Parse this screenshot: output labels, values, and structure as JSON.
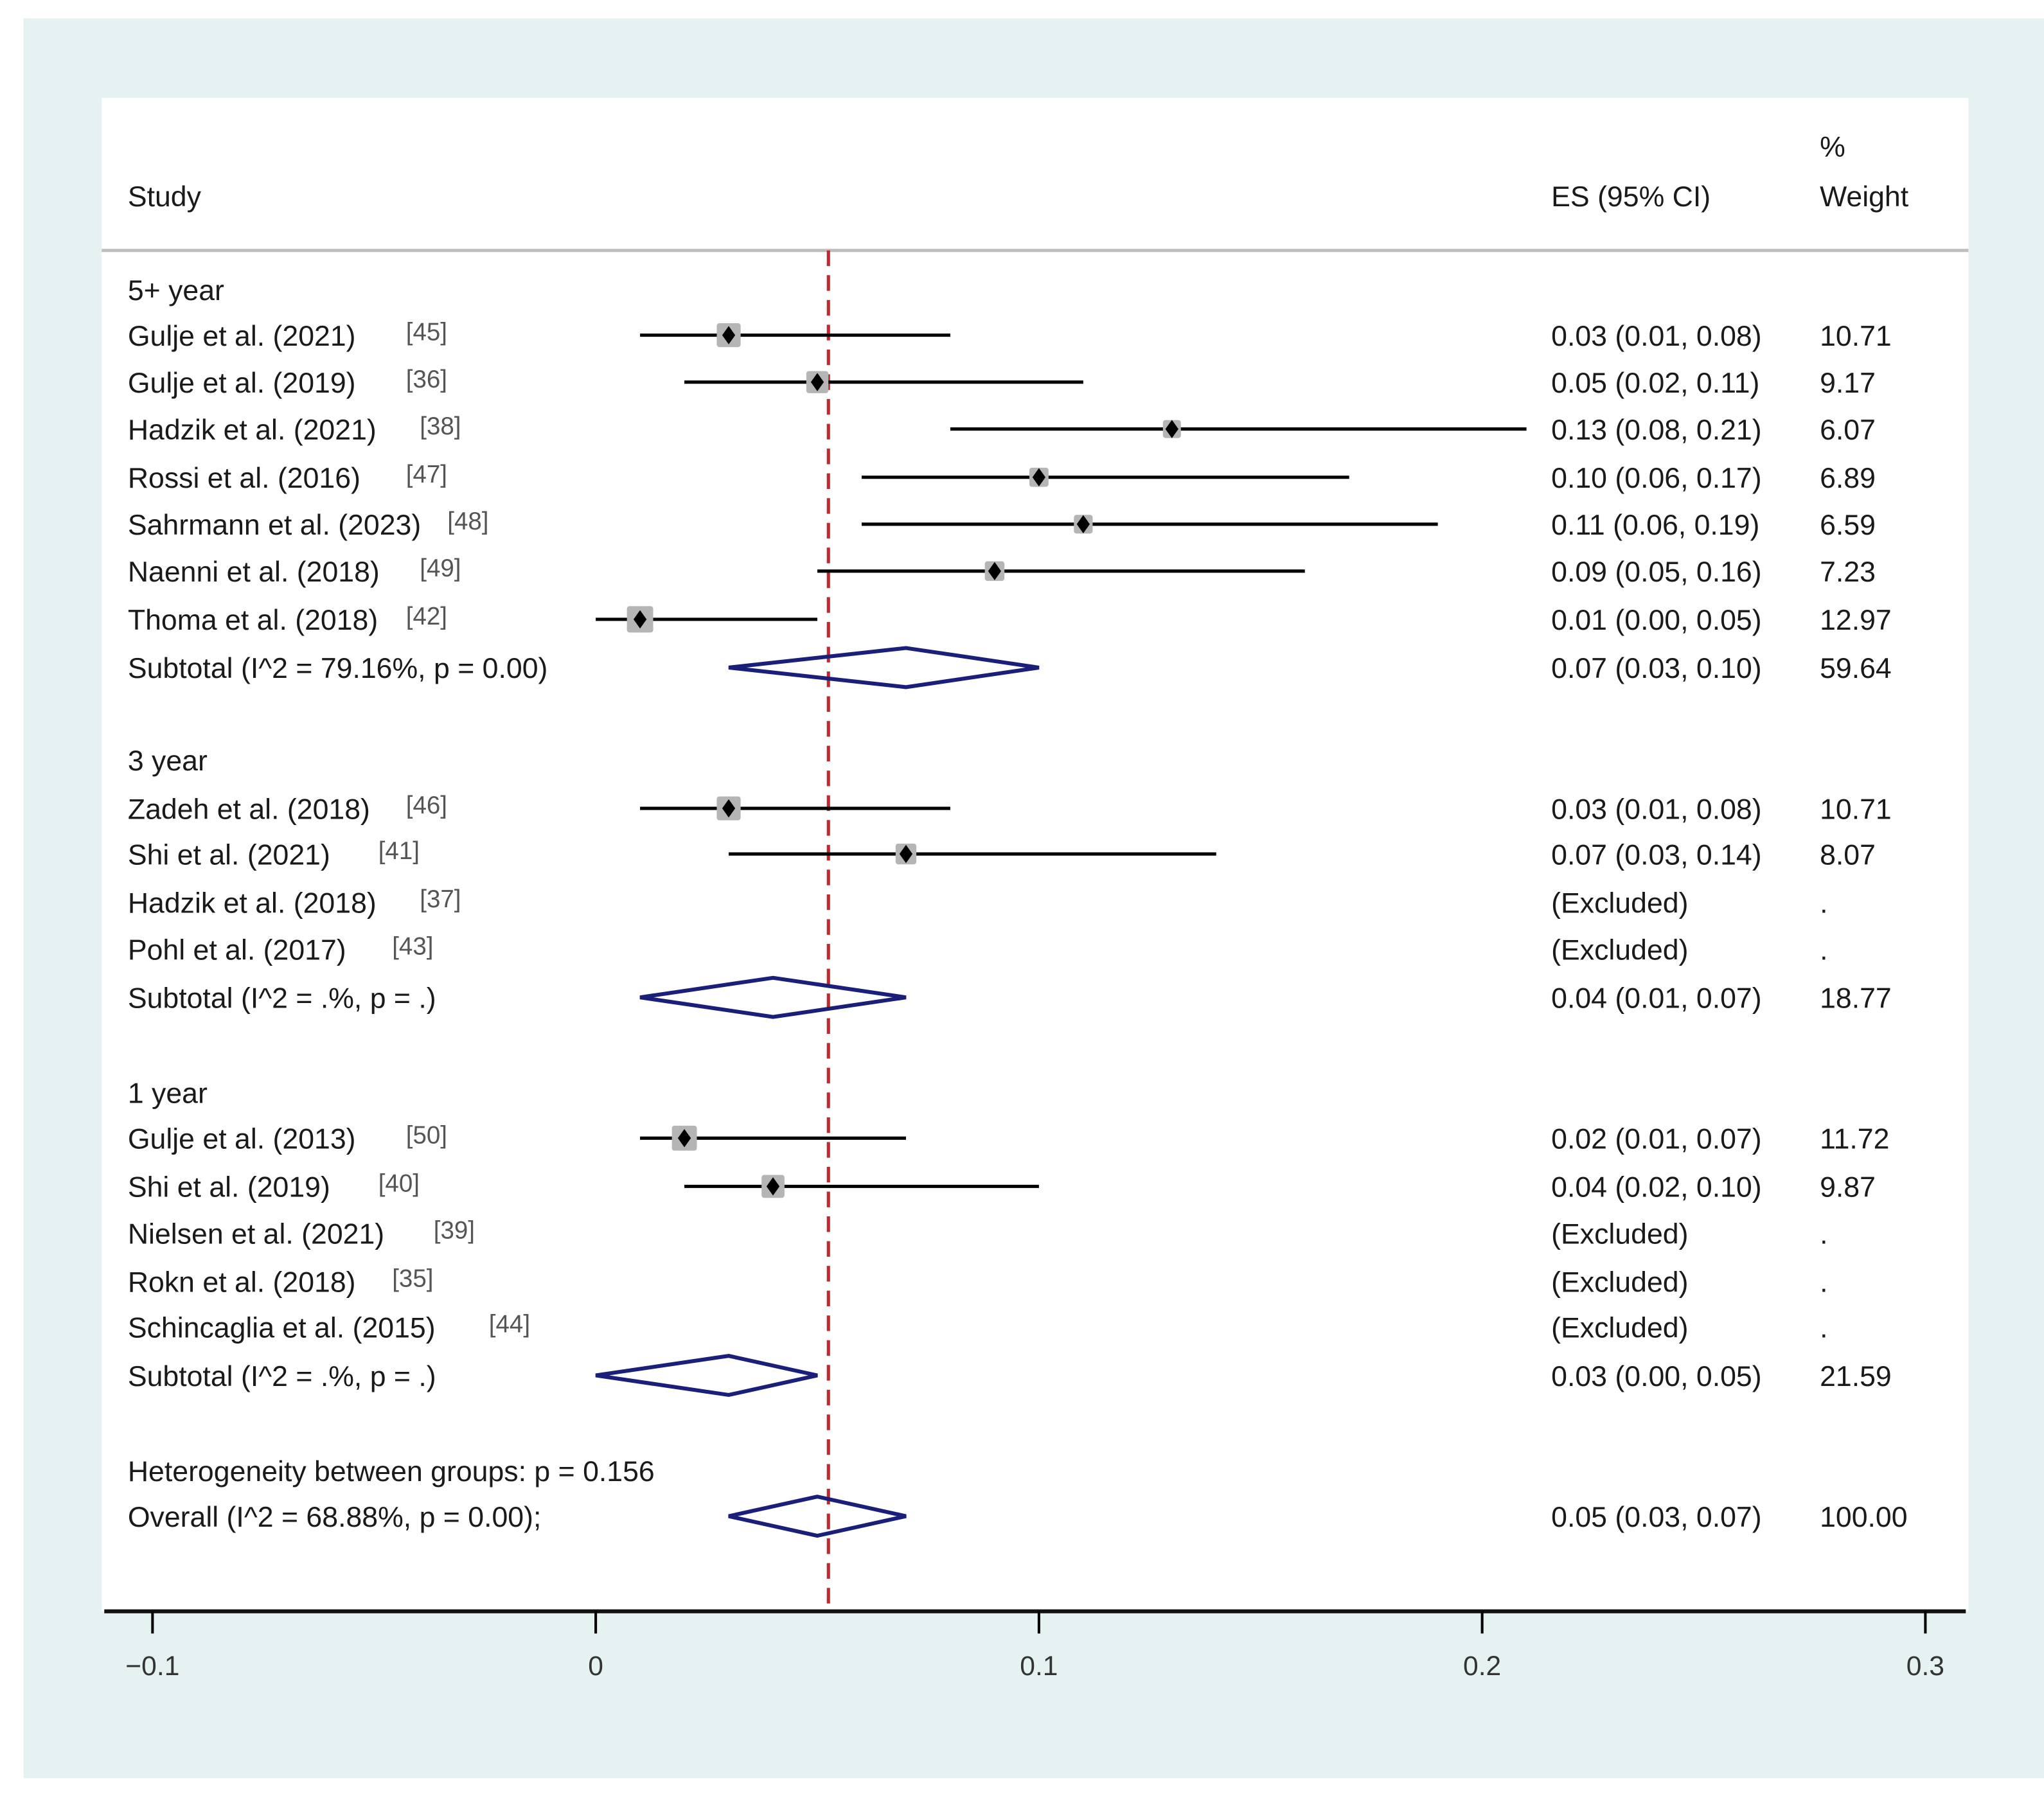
{
  "chart_data": {
    "type": "forest",
    "header": {
      "study": "Study",
      "es": "ES (95% CI)",
      "weight_top": "%",
      "weight": "Weight"
    },
    "xlim": [
      -0.1,
      0.3
    ],
    "xticks": [
      -0.1,
      0,
      0.1,
      0.2,
      0.3
    ],
    "xtick_labels": [
      "−0.1",
      "0",
      "0.1",
      "0.2",
      "0.3"
    ],
    "reference_line": 0.0525,
    "groups": [
      {
        "name": "5+ year",
        "studies": [
          {
            "label": "Gulje et al. (2021)",
            "ref": "[45]",
            "es": 0.03,
            "lo": 0.01,
            "hi": 0.08,
            "es_text": "0.03 (0.01, 0.08)",
            "weight": "10.71"
          },
          {
            "label": "Gulje et al. (2019)",
            "ref": "[36]",
            "es": 0.05,
            "lo": 0.02,
            "hi": 0.11,
            "es_text": "0.05 (0.02, 0.11)",
            "weight": "9.17"
          },
          {
            "label": "Hadzik et al. (2021)",
            "ref": "[38]",
            "es": 0.13,
            "lo": 0.08,
            "hi": 0.21,
            "es_text": "0.13 (0.08, 0.21)",
            "weight": "6.07"
          },
          {
            "label": "Rossi et al. (2016)",
            "ref": "[47]",
            "es": 0.1,
            "lo": 0.06,
            "hi": 0.17,
            "es_text": "0.10 (0.06, 0.17)",
            "weight": "6.89"
          },
          {
            "label": "Sahrmann et al. (2023)",
            "ref": "[48]",
            "es": 0.11,
            "lo": 0.06,
            "hi": 0.19,
            "es_text": "0.11 (0.06, 0.19)",
            "weight": "6.59"
          },
          {
            "label": "Naenni et al. (2018)",
            "ref": "[49]",
            "es": 0.09,
            "lo": 0.05,
            "hi": 0.16,
            "es_text": "0.09 (0.05, 0.16)",
            "weight": "7.23"
          },
          {
            "label": "Thoma et al. (2018)",
            "ref": "[42]",
            "es": 0.01,
            "lo": 0.0,
            "hi": 0.05,
            "es_text": "0.01 (0.00, 0.05)",
            "weight": "12.97"
          }
        ],
        "subtotal": {
          "label": "Subtotal  (I^2 = 79.16%, p = 0.00)",
          "es": 0.07,
          "lo": 0.03,
          "hi": 0.1,
          "es_text": "0.07 (0.03, 0.10)",
          "weight": "59.64"
        }
      },
      {
        "name": "3 year",
        "studies": [
          {
            "label": "Zadeh et al. (2018)",
            "ref": "[46]",
            "es": 0.03,
            "lo": 0.01,
            "hi": 0.08,
            "es_text": "0.03 (0.01, 0.08)",
            "weight": "10.71"
          },
          {
            "label": "Shi et al. (2021)",
            "ref": "[41]",
            "es": 0.07,
            "lo": 0.03,
            "hi": 0.14,
            "es_text": "0.07 (0.03, 0.14)",
            "weight": "8.07"
          },
          {
            "label": "Hadzik et al. (2018)",
            "ref": "[37]",
            "es": null,
            "es_text": "(Excluded)",
            "weight": "."
          },
          {
            "label": "Pohl et al. (2017)",
            "ref": "[43]",
            "es": null,
            "es_text": "(Excluded)",
            "weight": "."
          }
        ],
        "subtotal": {
          "label": "Subtotal  (I^2 = .%, p = .)",
          "es": 0.04,
          "lo": 0.01,
          "hi": 0.07,
          "es_text": "0.04 (0.01, 0.07)",
          "weight": "18.77"
        }
      },
      {
        "name": "1 year",
        "studies": [
          {
            "label": "Gulje et al. (2013)",
            "ref": "[50]",
            "es": 0.02,
            "lo": 0.01,
            "hi": 0.07,
            "es_text": "0.02 (0.01, 0.07)",
            "weight": "11.72"
          },
          {
            "label": "Shi et al. (2019)",
            "ref": "[40]",
            "es": 0.04,
            "lo": 0.02,
            "hi": 0.1,
            "es_text": "0.04 (0.02, 0.10)",
            "weight": "9.87"
          },
          {
            "label": "Nielsen et al. (2021)",
            "ref": "[39]",
            "es": null,
            "es_text": "(Excluded)",
            "weight": "."
          },
          {
            "label": "Rokn et al. (2018)",
            "ref": "[35]",
            "es": null,
            "es_text": "(Excluded)",
            "weight": "."
          },
          {
            "label": "Schincaglia et al. (2015)",
            "ref": "[44]",
            "es": null,
            "es_text": "(Excluded)",
            "weight": "."
          }
        ],
        "subtotal": {
          "label": "Subtotal  (I^2 = .%, p = .)",
          "es": 0.03,
          "lo": 0.0,
          "hi": 0.05,
          "es_text": "0.03 (0.00, 0.05)",
          "weight": "21.59"
        }
      }
    ],
    "heterogeneity": "Heterogeneity between groups: p = 0.156",
    "overall": {
      "label": "Overall  (I^2 = 68.88%, p = 0.00);",
      "es": 0.05,
      "lo": 0.03,
      "hi": 0.07,
      "es_text": "0.05 (0.03, 0.07)",
      "weight": "100.00"
    },
    "colors": {
      "background": "#e6f2f2",
      "panel": "#ffffff",
      "reference_line": "#c0282d",
      "diamond": "#1a1f7a",
      "box": "#b5b5b5",
      "point": "#000000"
    }
  }
}
